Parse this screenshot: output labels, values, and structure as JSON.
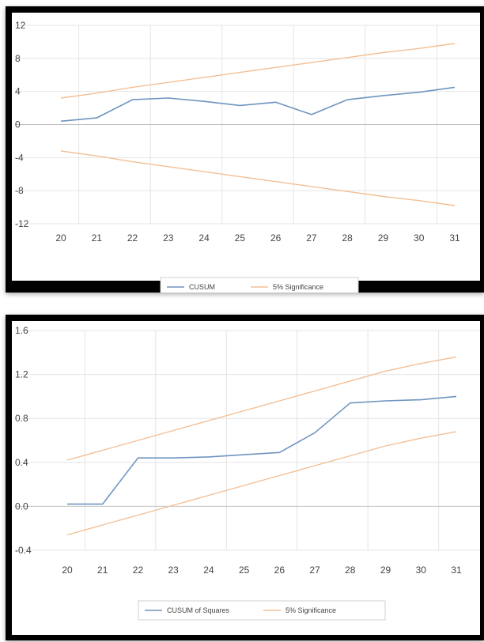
{
  "colors": {
    "cusum_line": "#6f94bf",
    "significance_line": "#f3bf95",
    "grid": "#e4e4e4",
    "zero_line": "#c0c0c0",
    "panel_border": "#000000",
    "tick_text": "#444444"
  },
  "chart_data": [
    {
      "type": "line",
      "title": "",
      "xlabel": "",
      "ylabel": "",
      "x": [
        20,
        21,
        22,
        23,
        24,
        25,
        26,
        27,
        28,
        29,
        30,
        31
      ],
      "ylim": [
        -12,
        12
      ],
      "yticks": [
        12,
        8,
        4,
        0,
        -4,
        -8,
        -12
      ],
      "ytick_labels": [
        "12",
        "8",
        "4",
        "0",
        "-4",
        "-8",
        "-12"
      ],
      "xtick_labels": [
        "20",
        "21",
        "22",
        "23",
        "24",
        "25",
        "26",
        "27",
        "28",
        "29",
        "30",
        "31"
      ],
      "grid": true,
      "legend_position": "bottom",
      "series": [
        {
          "name": "CUSUM",
          "color": "#6f94bf",
          "values": [
            0.4,
            0.8,
            3.0,
            3.2,
            2.8,
            2.3,
            2.7,
            1.2,
            3.0,
            3.5,
            3.9,
            4.5
          ]
        },
        {
          "name": "5% Significance",
          "color": "#f3bf95",
          "values": [
            3.2,
            3.8,
            4.5,
            5.1,
            5.7,
            6.3,
            6.9,
            7.5,
            8.1,
            8.7,
            9.2,
            9.8
          ]
        },
        {
          "name": "",
          "color": "#f3bf95",
          "legend": false,
          "values": [
            -3.2,
            -3.8,
            -4.5,
            -5.1,
            -5.7,
            -6.3,
            -6.9,
            -7.5,
            -8.1,
            -8.7,
            -9.2,
            -9.8
          ]
        }
      ],
      "legend": [
        {
          "label": "CUSUM",
          "color": "#6f94bf"
        },
        {
          "label": "5% Significance",
          "color": "#f3bf95"
        }
      ]
    },
    {
      "type": "line",
      "title": "",
      "xlabel": "",
      "ylabel": "",
      "x": [
        20,
        21,
        22,
        23,
        24,
        25,
        26,
        27,
        28,
        29,
        30,
        31
      ],
      "ylim": [
        -0.4,
        1.6
      ],
      "yticks": [
        1.6,
        1.2,
        0.8,
        0.4,
        0.0,
        -0.4
      ],
      "ytick_labels": [
        "1.6",
        "1.2",
        "0.8",
        "0.4",
        "0.0",
        "-0.4"
      ],
      "xtick_labels": [
        "20",
        "21",
        "22",
        "23",
        "24",
        "25",
        "26",
        "27",
        "28",
        "29",
        "30",
        "31"
      ],
      "grid": true,
      "legend_position": "bottom",
      "series": [
        {
          "name": "CUSUM of Squares",
          "color": "#6f94bf",
          "values": [
            0.02,
            0.02,
            0.44,
            0.44,
            0.45,
            0.47,
            0.49,
            0.67,
            0.94,
            0.96,
            0.97,
            1.0
          ]
        },
        {
          "name": "5% Significance",
          "color": "#f3bf95",
          "values": [
            0.42,
            0.51,
            0.6,
            0.69,
            0.78,
            0.87,
            0.96,
            1.05,
            1.14,
            1.23,
            1.3,
            1.36
          ]
        },
        {
          "name": "",
          "color": "#f3bf95",
          "legend": false,
          "values": [
            -0.26,
            -0.17,
            -0.08,
            0.01,
            0.1,
            0.19,
            0.28,
            0.37,
            0.46,
            0.55,
            0.62,
            0.68
          ]
        }
      ],
      "legend": [
        {
          "label": "CUSUM of Squares",
          "color": "#6f94bf"
        },
        {
          "label": "5% Significance",
          "color": "#f3bf95"
        }
      ]
    }
  ]
}
